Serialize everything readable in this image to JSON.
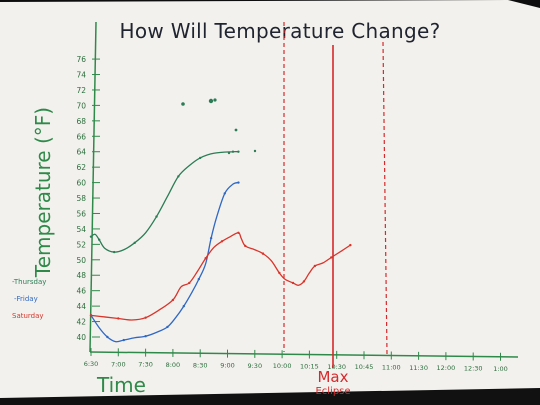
{
  "chart_data": {
    "type": "line",
    "title": "How Will Temperature Change?",
    "xlabel": "Time",
    "ylabel": "Temperature (°F)",
    "x_ticks": [
      "6:30",
      "7:00",
      "7:30",
      "8:00",
      "8:30",
      "9:00",
      "9:30",
      "10:00",
      "10:15",
      "10:30",
      "10:45",
      "11:00",
      "11:30",
      "12:00",
      "12:30",
      "1:00"
    ],
    "y_ticks": [
      40,
      42,
      44,
      46,
      48,
      50,
      52,
      54,
      56,
      58,
      60,
      62,
      64,
      66,
      68,
      70,
      72,
      74,
      76
    ],
    "ylim": [
      39,
      76
    ],
    "annotations": {
      "max_label": "Max",
      "eclipse_label": "Eclipse"
    },
    "series": [
      {
        "name": "Thursday",
        "color": "#2b7d55",
        "points": [
          [
            0.0,
            53.0
          ],
          [
            0.15,
            53.3
          ],
          [
            0.3,
            52.6
          ],
          [
            0.5,
            51.5
          ],
          [
            0.85,
            51.0
          ],
          [
            1.2,
            51.3
          ],
          [
            1.6,
            52.2
          ],
          [
            2.0,
            53.5
          ],
          [
            2.4,
            55.6
          ],
          [
            2.8,
            58.2
          ],
          [
            3.2,
            60.8
          ],
          [
            3.6,
            62.2
          ],
          [
            4.0,
            63.2
          ],
          [
            4.5,
            63.8
          ],
          [
            5.2,
            64.0
          ],
          [
            5.4,
            64.0
          ]
        ]
      },
      {
        "name": "Friday",
        "color": "#2f68c4",
        "points": [
          [
            0.0,
            42.8
          ],
          [
            0.3,
            41.2
          ],
          [
            0.6,
            40.0
          ],
          [
            0.9,
            39.4
          ],
          [
            1.2,
            39.6
          ],
          [
            1.6,
            39.9
          ],
          [
            2.0,
            40.1
          ],
          [
            2.4,
            40.6
          ],
          [
            2.8,
            41.3
          ],
          [
            3.1,
            42.5
          ],
          [
            3.4,
            44.0
          ],
          [
            3.7,
            45.8
          ],
          [
            3.95,
            47.5
          ],
          [
            4.2,
            49.5
          ],
          [
            4.4,
            52.8
          ],
          [
            4.6,
            55.5
          ],
          [
            4.9,
            58.6
          ],
          [
            5.2,
            59.8
          ],
          [
            5.4,
            60.0
          ]
        ]
      },
      {
        "name": "Saturday",
        "color": "#d9342a",
        "points": [
          [
            0.0,
            42.8
          ],
          [
            0.5,
            42.6
          ],
          [
            1.0,
            42.4
          ],
          [
            1.5,
            42.2
          ],
          [
            2.0,
            42.5
          ],
          [
            2.5,
            43.5
          ],
          [
            3.0,
            44.8
          ],
          [
            3.3,
            46.5
          ],
          [
            3.6,
            47.0
          ],
          [
            3.9,
            48.5
          ],
          [
            4.2,
            50.2
          ],
          [
            4.5,
            51.6
          ],
          [
            4.8,
            52.4
          ],
          [
            5.1,
            53.0
          ],
          [
            5.4,
            53.5
          ],
          [
            5.5,
            52.8
          ],
          [
            5.65,
            51.8
          ],
          [
            6.0,
            51.3
          ],
          [
            6.3,
            50.8
          ],
          [
            6.6,
            49.9
          ],
          [
            6.9,
            48.3
          ],
          [
            7.1,
            47.5
          ],
          [
            7.4,
            47.0
          ],
          [
            7.6,
            46.7
          ],
          [
            7.8,
            47.2
          ],
          [
            8.0,
            48.3
          ],
          [
            8.2,
            49.2
          ],
          [
            8.5,
            49.6
          ],
          [
            8.8,
            50.3
          ],
          [
            9.2,
            51.2
          ],
          [
            9.5,
            51.9
          ]
        ]
      }
    ],
    "grid": false,
    "legend_position": "left"
  },
  "legend": [
    {
      "label": "-Thursday",
      "color": "#2b7d55"
    },
    {
      "label": "-Friday",
      "color": "#2f68c4"
    },
    {
      "label": "Saturday",
      "color": "#d9342a"
    }
  ],
  "colors": {
    "paper": "#f4f2ee",
    "axis_green": "#2f8a4a",
    "title": "#1f2430",
    "eclipse_red": "#d6292b"
  }
}
